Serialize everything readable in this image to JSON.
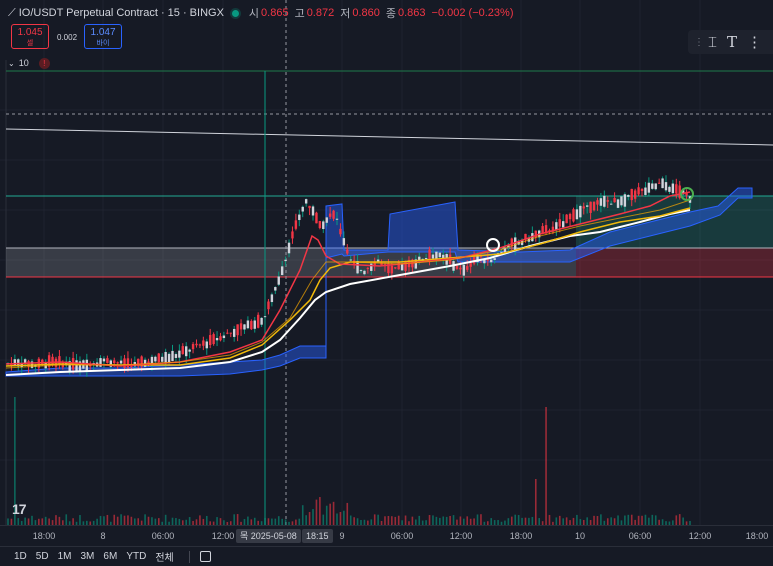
{
  "header": {
    "symbol": "IO/USDT Perpetual Contract · 15 · BINGX",
    "open_label": "시",
    "open": "0.865",
    "high_label": "고",
    "high": "0.872",
    "low_label": "저",
    "low": "0.860",
    "close_label": "종",
    "close": "0.863",
    "change": "−0.002 (−0.23%)"
  },
  "trade": {
    "sell_price": "1.045",
    "sell_label": "셀",
    "spread": "0.002",
    "buy_price": "1.047",
    "buy_label": "바이"
  },
  "indicator": {
    "volume_length": "10",
    "warning": "!"
  },
  "icons": [
    "chart-logo-icon",
    "live-dot-icon",
    "text-cursor-icon",
    "text-tool-icon",
    "more-icon",
    "calendar-icon",
    "chevron-down-icon",
    "warning-icon"
  ],
  "colors": {
    "background": "#161a25",
    "bull": "#089981",
    "bear": "#f23645",
    "ma_fast": "#f23645",
    "ma_mid": "#f0b90b",
    "ma_slow": "#ffffff",
    "cloud": "#2962ff",
    "accent": "#2962ff"
  },
  "time_axis": {
    "ticks": [
      "18:00",
      "8",
      "06:00",
      "12:00",
      "9",
      "06:00",
      "12:00",
      "18:00",
      "10",
      "06:00",
      "12:00",
      "18:00"
    ],
    "cursor_date": "목 2025-05-08",
    "cursor_time": "18:15"
  },
  "bottom_bar": {
    "ranges": [
      "1D",
      "5D",
      "1M",
      "3M",
      "6M",
      "YTD",
      "전체"
    ]
  },
  "chart_data": {
    "type": "candlestick",
    "series": [
      {
        "name": "price",
        "values": [
          0.722,
          0.723,
          0.721,
          0.724,
          0.722,
          0.72,
          0.723,
          0.725,
          0.722,
          0.721,
          0.724,
          0.727,
          0.73,
          0.735,
          0.74,
          0.745,
          0.75,
          0.755,
          0.76,
          0.79,
          0.83,
          0.86,
          0.84,
          0.85,
          0.81,
          0.8,
          0.81,
          0.8,
          0.805,
          0.81,
          0.815,
          0.81,
          0.8,
          0.812,
          0.81,
          0.82,
          0.825,
          0.83,
          0.835,
          0.84,
          0.85,
          0.855,
          0.86,
          0.858,
          0.865,
          0.87,
          0.875,
          0.869,
          0.863
        ]
      }
    ]
  }
}
